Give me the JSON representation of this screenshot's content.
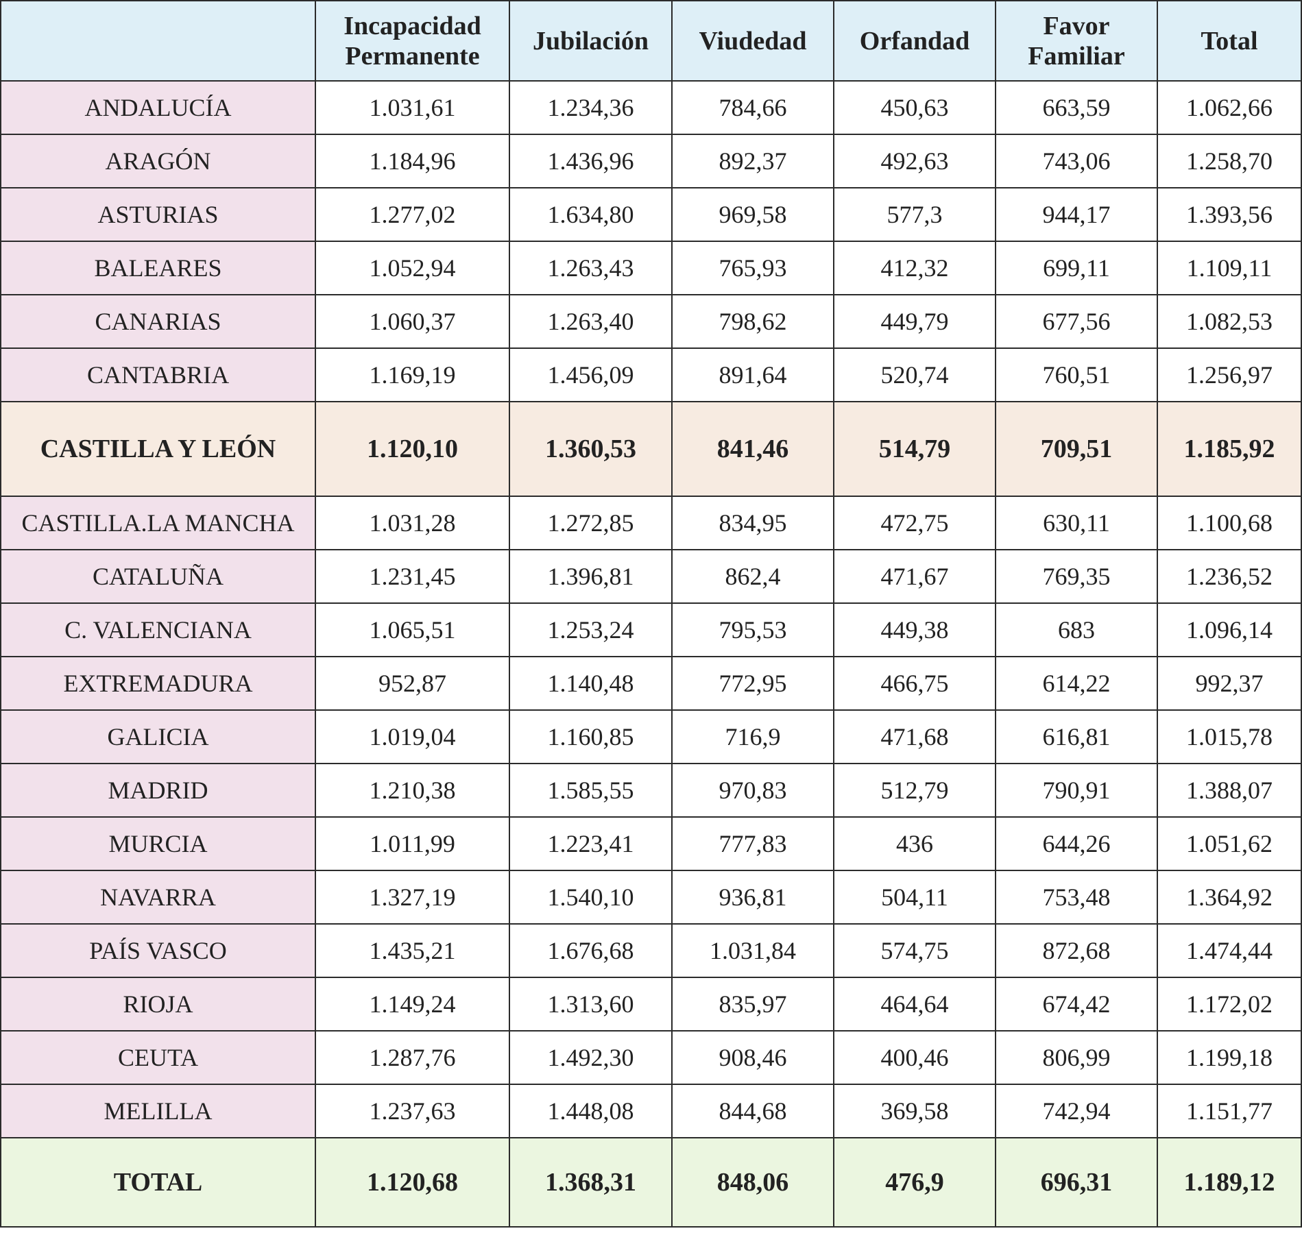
{
  "table": {
    "header": [
      "Incapacidad Permanente",
      "Jubilación",
      "Viudedad",
      "Orfandad",
      "Favor Familiar",
      "Total"
    ],
    "rows": [
      [
        "ANDALUCÍA",
        "1.031,61",
        "1.234,36",
        "784,66",
        "450,63",
        "663,59",
        "1.062,66"
      ],
      [
        "ARAGÓN",
        "1.184,96",
        "1.436,96",
        "892,37",
        "492,63",
        "743,06",
        "1.258,70"
      ],
      [
        "ASTURIAS",
        "1.277,02",
        "1.634,80",
        "969,58",
        "577,3",
        "944,17",
        "1.393,56"
      ],
      [
        "BALEARES",
        "1.052,94",
        "1.263,43",
        "765,93",
        "412,32",
        "699,11",
        "1.109,11"
      ],
      [
        "CANARIAS",
        "1.060,37",
        "1.263,40",
        "798,62",
        "449,79",
        "677,56",
        "1.082,53"
      ],
      [
        "CANTABRIA",
        "1.169,19",
        "1.456,09",
        "891,64",
        "520,74",
        "760,51",
        "1.256,97"
      ],
      [
        "CASTILLA Y LEÓN",
        "1.120,10",
        "1.360,53",
        "841,46",
        "514,79",
        "709,51",
        "1.185,92"
      ],
      [
        "CASTILLA.LA MANCHA",
        "1.031,28",
        "1.272,85",
        "834,95",
        "472,75",
        "630,11",
        "1.100,68"
      ],
      [
        "CATALUÑA",
        "1.231,45",
        "1.396,81",
        "862,4",
        "471,67",
        "769,35",
        "1.236,52"
      ],
      [
        "C. VALENCIANA",
        "1.065,51",
        "1.253,24",
        "795,53",
        "449,38",
        "683",
        "1.096,14"
      ],
      [
        "EXTREMADURA",
        "952,87",
        "1.140,48",
        "772,95",
        "466,75",
        "614,22",
        "992,37"
      ],
      [
        "GALICIA",
        "1.019,04",
        "1.160,85",
        "716,9",
        "471,68",
        "616,81",
        "1.015,78"
      ],
      [
        "MADRID",
        "1.210,38",
        "1.585,55",
        "970,83",
        "512,79",
        "790,91",
        "1.388,07"
      ],
      [
        "MURCIA",
        "1.011,99",
        "1.223,41",
        "777,83",
        "436",
        "644,26",
        "1.051,62"
      ],
      [
        "NAVARRA",
        "1.327,19",
        "1.540,10",
        "936,81",
        "504,11",
        "753,48",
        "1.364,92"
      ],
      [
        "PAÍS VASCO",
        "1.435,21",
        "1.676,68",
        "1.031,84",
        "574,75",
        "872,68",
        "1.474,44"
      ],
      [
        "RIOJA",
        "1.149,24",
        "1.313,60",
        "835,97",
        "464,64",
        "674,42",
        "1.172,02"
      ],
      [
        "CEUTA",
        "1.287,76",
        "1.492,30",
        "908,46",
        "400,46",
        "806,99",
        "1.199,18"
      ],
      [
        "MELILLA",
        "1.237,63",
        "1.448,08",
        "844,68",
        "369,58",
        "742,94",
        "1.151,77"
      ],
      [
        "TOTAL",
        "1.120,68",
        "1.368,31",
        "848,06",
        "476,9",
        "696,31",
        "1.189,12"
      ]
    ]
  }
}
